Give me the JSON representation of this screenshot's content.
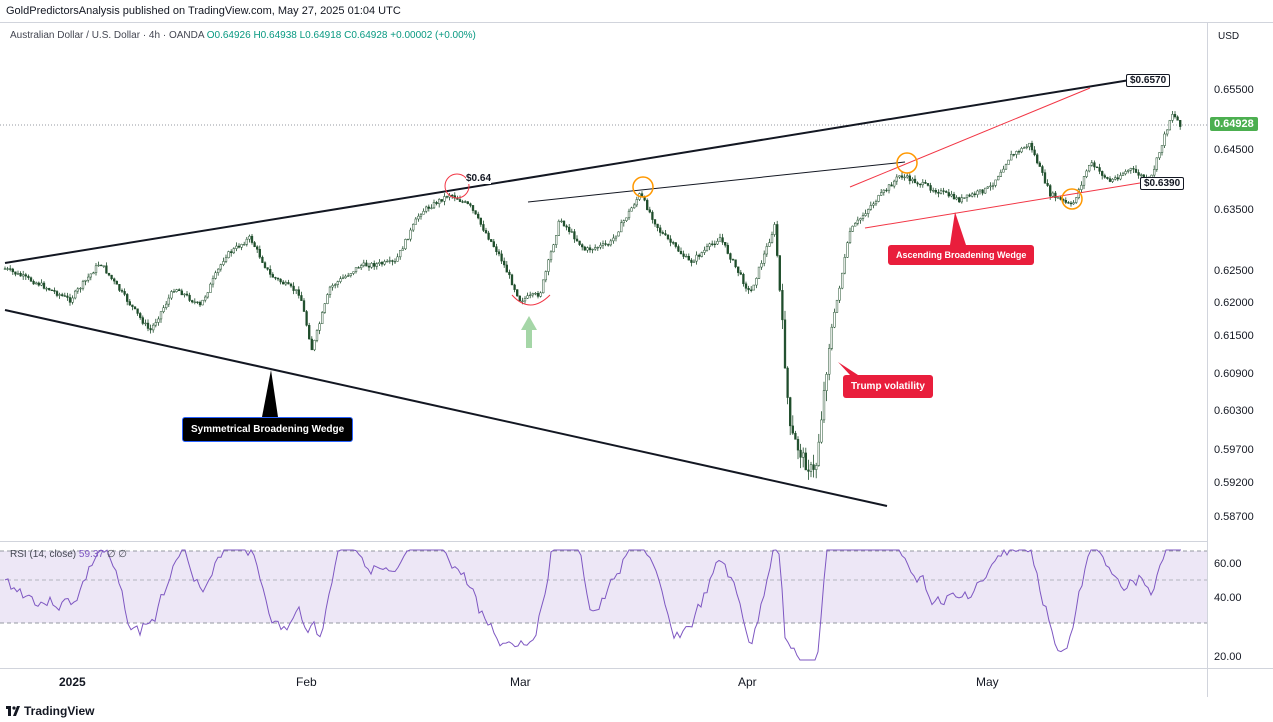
{
  "header": {
    "published": "GoldPredictorsAnalysis published on TradingView.com, May 27, 2025 01:04 UTC"
  },
  "legend": {
    "symbol": "Australian Dollar / U.S. Dollar · 4h · OANDA",
    "open": "O0.64926",
    "high": "H0.64938",
    "low": "L0.64918",
    "close": "C0.64928",
    "change": "+0.00002 (+0.00%)"
  },
  "axis": {
    "currency": "USD",
    "price_ticks": [
      "0.65500",
      "0.64500",
      "0.63500",
      "0.62500",
      "0.62000",
      "0.61500",
      "0.60900",
      "0.60300",
      "0.59700",
      "0.59200",
      "0.58700"
    ],
    "rsi_ticks": [
      "60.00",
      "40.00",
      "20.00"
    ],
    "time_ticks": [
      "2025",
      "Feb",
      "Mar",
      "Apr",
      "May"
    ],
    "last_price": "0.64928"
  },
  "rsi": {
    "label": "RSI (14, close)",
    "value": "59.37",
    "extra": "∅ ∅"
  },
  "annotations": {
    "upper_target": "$0.6570",
    "level_064": "$0.64",
    "support": "$0.6390",
    "symmetrical": "Symmetrical Broadening Wedge",
    "ascending": "Ascending Broadening Wedge",
    "trump": "Trump volatility"
  },
  "colors": {
    "up": "#089981",
    "down": "#f23645",
    "candle": "#1e4d2b",
    "rsi_line": "#7e57c2",
    "rsi_band": "#ede7f6",
    "callout_red": "#e91e3c",
    "callout_black": "#000000",
    "last_price_bg": "#4caf50"
  },
  "chart_data": {
    "type": "candlestick",
    "series": [
      {
        "name": "AUDUSD",
        "x": [
          "2025-01-01",
          "2025-01-08",
          "2025-01-13",
          "2025-01-20",
          "2025-01-27",
          "2025-01-31",
          "2025-02-03",
          "2025-02-10",
          "2025-02-17",
          "2025-02-21",
          "2025-02-28",
          "2025-03-03",
          "2025-03-10",
          "2025-03-18",
          "2025-03-24",
          "2025-03-31",
          "2025-04-04",
          "2025-04-09",
          "2025-04-14",
          "2025-04-21",
          "2025-04-28",
          "2025-05-06",
          "2025-05-12",
          "2025-05-19",
          "2025-05-26"
        ],
        "close": [
          0.626,
          0.629,
          0.621,
          0.627,
          0.624,
          0.622,
          0.614,
          0.627,
          0.635,
          0.64,
          0.621,
          0.625,
          0.63,
          0.638,
          0.628,
          0.626,
          0.63,
          0.594,
          0.628,
          0.643,
          0.64,
          0.648,
          0.637,
          0.645,
          0.6493
        ]
      }
    ],
    "ylim": [
      0.585,
      0.661
    ],
    "rsi_levels": [
      70,
      50,
      30
    ]
  }
}
